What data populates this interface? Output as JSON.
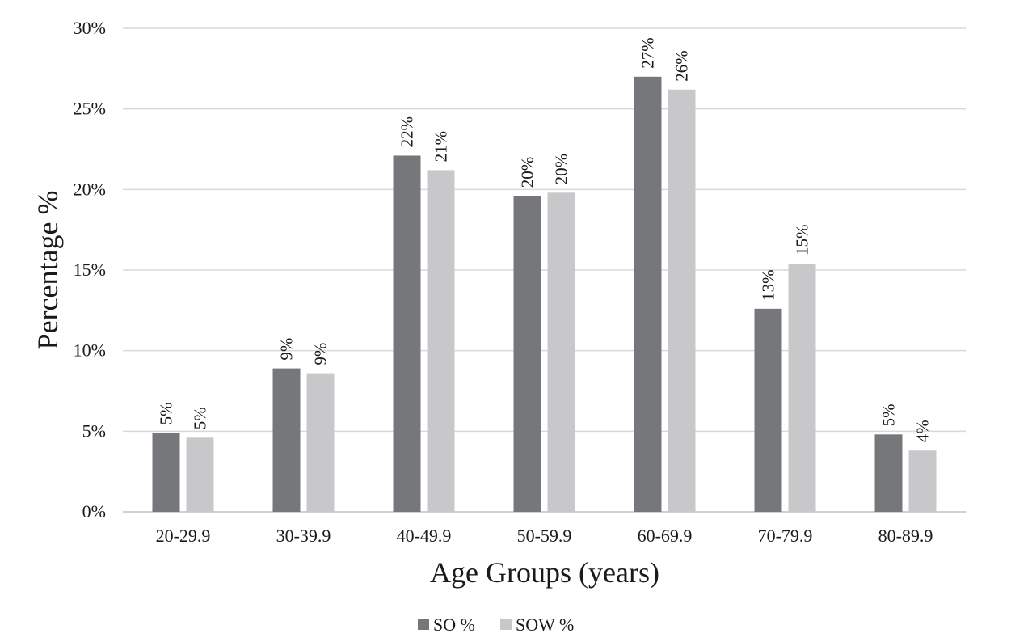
{
  "chart_data": {
    "type": "bar",
    "title": "",
    "xlabel": "Age Groups (years)",
    "ylabel": "Percentage %",
    "ylim": [
      0,
      30
    ],
    "y_ticks": [
      0,
      5,
      10,
      15,
      20,
      25,
      30
    ],
    "y_tick_labels": [
      "0%",
      "5%",
      "10%",
      "15%",
      "20%",
      "25%",
      "30%"
    ],
    "grid": true,
    "legend_position": "bottom-center",
    "categories": [
      "20-29.9",
      "30-39.9",
      "40-49.9",
      "50-59.9",
      "60-69.9",
      "70-79.9",
      "80-89.9"
    ],
    "series": [
      {
        "name": "SO %",
        "color": "#76777a",
        "values": [
          4.9,
          8.9,
          22.1,
          19.6,
          27.0,
          12.6,
          4.8
        ],
        "labels": [
          "5%",
          "9%",
          "22%",
          "20%",
          "27%",
          "13%",
          "5%"
        ]
      },
      {
        "name": "SOW %",
        "color": "#c8c8ca",
        "values": [
          4.6,
          8.6,
          21.2,
          19.8,
          26.2,
          15.4,
          3.8
        ],
        "labels": [
          "5%",
          "9%",
          "21%",
          "20%",
          "26%",
          "15%",
          "4%"
        ]
      }
    ],
    "gridline_color": "#d9d9d9",
    "axis_color": "#d0d0d0"
  }
}
